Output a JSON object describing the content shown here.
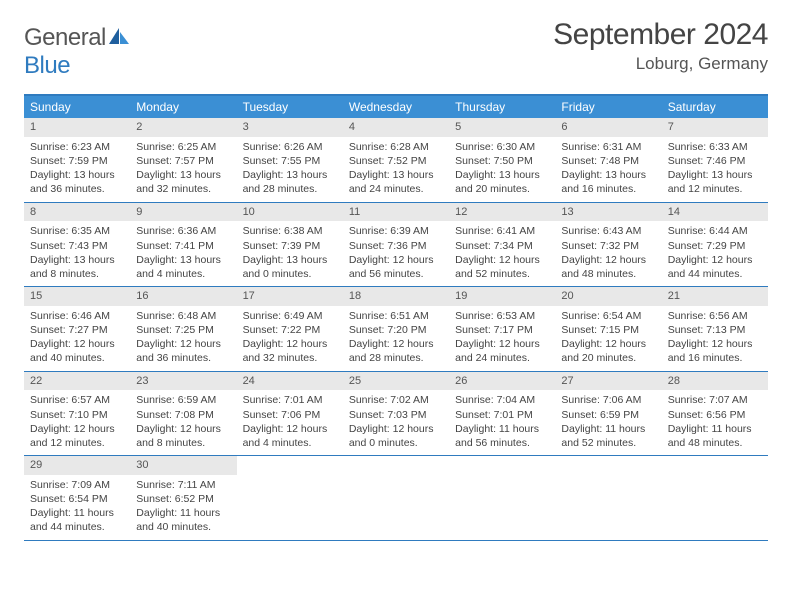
{
  "logo": {
    "text_general": "General",
    "text_blue": "Blue"
  },
  "title": "September 2024",
  "location": "Loburg, Germany",
  "colors": {
    "header_bg": "#3b8fd4",
    "header_border": "#2f7bbf",
    "daynum_bg": "#e8e8e8",
    "text": "#444444"
  },
  "day_names": [
    "Sunday",
    "Monday",
    "Tuesday",
    "Wednesday",
    "Thursday",
    "Friday",
    "Saturday"
  ],
  "weeks": [
    [
      {
        "n": "1",
        "sr": "Sunrise: 6:23 AM",
        "ss": "Sunset: 7:59 PM",
        "dl": "Daylight: 13 hours and 36 minutes."
      },
      {
        "n": "2",
        "sr": "Sunrise: 6:25 AM",
        "ss": "Sunset: 7:57 PM",
        "dl": "Daylight: 13 hours and 32 minutes."
      },
      {
        "n": "3",
        "sr": "Sunrise: 6:26 AM",
        "ss": "Sunset: 7:55 PM",
        "dl": "Daylight: 13 hours and 28 minutes."
      },
      {
        "n": "4",
        "sr": "Sunrise: 6:28 AM",
        "ss": "Sunset: 7:52 PM",
        "dl": "Daylight: 13 hours and 24 minutes."
      },
      {
        "n": "5",
        "sr": "Sunrise: 6:30 AM",
        "ss": "Sunset: 7:50 PM",
        "dl": "Daylight: 13 hours and 20 minutes."
      },
      {
        "n": "6",
        "sr": "Sunrise: 6:31 AM",
        "ss": "Sunset: 7:48 PM",
        "dl": "Daylight: 13 hours and 16 minutes."
      },
      {
        "n": "7",
        "sr": "Sunrise: 6:33 AM",
        "ss": "Sunset: 7:46 PM",
        "dl": "Daylight: 13 hours and 12 minutes."
      }
    ],
    [
      {
        "n": "8",
        "sr": "Sunrise: 6:35 AM",
        "ss": "Sunset: 7:43 PM",
        "dl": "Daylight: 13 hours and 8 minutes."
      },
      {
        "n": "9",
        "sr": "Sunrise: 6:36 AM",
        "ss": "Sunset: 7:41 PM",
        "dl": "Daylight: 13 hours and 4 minutes."
      },
      {
        "n": "10",
        "sr": "Sunrise: 6:38 AM",
        "ss": "Sunset: 7:39 PM",
        "dl": "Daylight: 13 hours and 0 minutes."
      },
      {
        "n": "11",
        "sr": "Sunrise: 6:39 AM",
        "ss": "Sunset: 7:36 PM",
        "dl": "Daylight: 12 hours and 56 minutes."
      },
      {
        "n": "12",
        "sr": "Sunrise: 6:41 AM",
        "ss": "Sunset: 7:34 PM",
        "dl": "Daylight: 12 hours and 52 minutes."
      },
      {
        "n": "13",
        "sr": "Sunrise: 6:43 AM",
        "ss": "Sunset: 7:32 PM",
        "dl": "Daylight: 12 hours and 48 minutes."
      },
      {
        "n": "14",
        "sr": "Sunrise: 6:44 AM",
        "ss": "Sunset: 7:29 PM",
        "dl": "Daylight: 12 hours and 44 minutes."
      }
    ],
    [
      {
        "n": "15",
        "sr": "Sunrise: 6:46 AM",
        "ss": "Sunset: 7:27 PM",
        "dl": "Daylight: 12 hours and 40 minutes."
      },
      {
        "n": "16",
        "sr": "Sunrise: 6:48 AM",
        "ss": "Sunset: 7:25 PM",
        "dl": "Daylight: 12 hours and 36 minutes."
      },
      {
        "n": "17",
        "sr": "Sunrise: 6:49 AM",
        "ss": "Sunset: 7:22 PM",
        "dl": "Daylight: 12 hours and 32 minutes."
      },
      {
        "n": "18",
        "sr": "Sunrise: 6:51 AM",
        "ss": "Sunset: 7:20 PM",
        "dl": "Daylight: 12 hours and 28 minutes."
      },
      {
        "n": "19",
        "sr": "Sunrise: 6:53 AM",
        "ss": "Sunset: 7:17 PM",
        "dl": "Daylight: 12 hours and 24 minutes."
      },
      {
        "n": "20",
        "sr": "Sunrise: 6:54 AM",
        "ss": "Sunset: 7:15 PM",
        "dl": "Daylight: 12 hours and 20 minutes."
      },
      {
        "n": "21",
        "sr": "Sunrise: 6:56 AM",
        "ss": "Sunset: 7:13 PM",
        "dl": "Daylight: 12 hours and 16 minutes."
      }
    ],
    [
      {
        "n": "22",
        "sr": "Sunrise: 6:57 AM",
        "ss": "Sunset: 7:10 PM",
        "dl": "Daylight: 12 hours and 12 minutes."
      },
      {
        "n": "23",
        "sr": "Sunrise: 6:59 AM",
        "ss": "Sunset: 7:08 PM",
        "dl": "Daylight: 12 hours and 8 minutes."
      },
      {
        "n": "24",
        "sr": "Sunrise: 7:01 AM",
        "ss": "Sunset: 7:06 PM",
        "dl": "Daylight: 12 hours and 4 minutes."
      },
      {
        "n": "25",
        "sr": "Sunrise: 7:02 AM",
        "ss": "Sunset: 7:03 PM",
        "dl": "Daylight: 12 hours and 0 minutes."
      },
      {
        "n": "26",
        "sr": "Sunrise: 7:04 AM",
        "ss": "Sunset: 7:01 PM",
        "dl": "Daylight: 11 hours and 56 minutes."
      },
      {
        "n": "27",
        "sr": "Sunrise: 7:06 AM",
        "ss": "Sunset: 6:59 PM",
        "dl": "Daylight: 11 hours and 52 minutes."
      },
      {
        "n": "28",
        "sr": "Sunrise: 7:07 AM",
        "ss": "Sunset: 6:56 PM",
        "dl": "Daylight: 11 hours and 48 minutes."
      }
    ],
    [
      {
        "n": "29",
        "sr": "Sunrise: 7:09 AM",
        "ss": "Sunset: 6:54 PM",
        "dl": "Daylight: 11 hours and 44 minutes."
      },
      {
        "n": "30",
        "sr": "Sunrise: 7:11 AM",
        "ss": "Sunset: 6:52 PM",
        "dl": "Daylight: 11 hours and 40 minutes."
      },
      null,
      null,
      null,
      null,
      null
    ]
  ]
}
